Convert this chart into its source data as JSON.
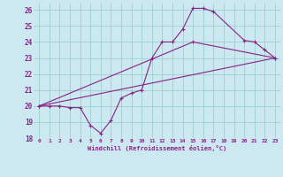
{
  "title": "",
  "xlabel": "Windchill (Refroidissement éolien,°C)",
  "ylabel": "",
  "bg_color": "#cce8f0",
  "grid_color": "#9dcfcf",
  "line_color": "#882288",
  "xlim": [
    -0.5,
    23.5
  ],
  "ylim": [
    18,
    26.4
  ],
  "xtick_labels": [
    "0",
    "1",
    "2",
    "3",
    "4",
    "5",
    "6",
    "7",
    "8",
    "9",
    "10",
    "11",
    "12",
    "13",
    "14",
    "15",
    "16",
    "17",
    "18",
    "19",
    "20",
    "21",
    "22",
    "23"
  ],
  "xtick_positions": [
    0,
    1,
    2,
    3,
    4,
    5,
    6,
    7,
    8,
    9,
    10,
    11,
    12,
    13,
    14,
    15,
    16,
    17,
    18,
    19,
    20,
    21,
    22,
    23
  ],
  "yticks": [
    18,
    19,
    20,
    21,
    22,
    23,
    24,
    25,
    26
  ],
  "series": [
    {
      "x": [
        0,
        1,
        2,
        3,
        4,
        5,
        6,
        7,
        8,
        9,
        10,
        11,
        12,
        13,
        14,
        15,
        16,
        17,
        20,
        21,
        22,
        23
      ],
      "y": [
        20,
        20,
        20,
        19.9,
        19.9,
        18.8,
        18.3,
        19.1,
        20.5,
        20.8,
        21.0,
        23.0,
        24.0,
        24.0,
        24.8,
        26.1,
        26.1,
        25.9,
        24.1,
        24.0,
        23.5,
        23.0
      ],
      "marker": true
    },
    {
      "x": [
        0,
        23
      ],
      "y": [
        20,
        23.0
      ],
      "marker": false
    },
    {
      "x": [
        0,
        15,
        23
      ],
      "y": [
        20,
        24.0,
        23.0
      ],
      "marker": true
    }
  ]
}
